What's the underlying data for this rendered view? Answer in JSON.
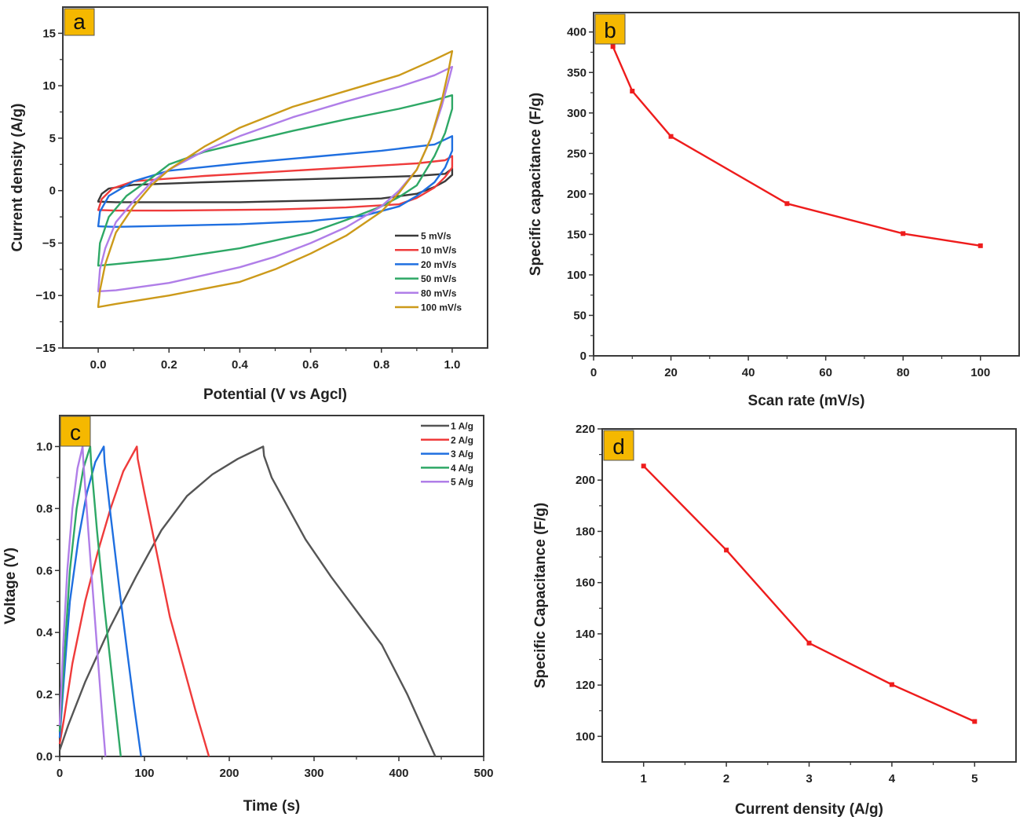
{
  "figure": {
    "panel_label_color": "#F5B800"
  },
  "chart_data": [
    {
      "panel": "a",
      "type": "line",
      "title": "",
      "xlabel": "Potential (V vs Agcl)",
      "ylabel": "Current density (A/g)",
      "xlim": [
        -0.1,
        1.1
      ],
      "ylim": [
        -15,
        17.5
      ],
      "xticks": [
        0.0,
        0.2,
        0.4,
        0.6,
        0.8,
        1.0
      ],
      "xtick_labels": [
        "0.0",
        "0.2",
        "0.4",
        "0.6",
        "0.8",
        "1.0"
      ],
      "yticks": [
        -15,
        -10,
        -5,
        0,
        5,
        10,
        15
      ],
      "ytick_labels": [
        "−15",
        "−10",
        "−5",
        "0",
        "5",
        "10",
        "15"
      ],
      "grid": false,
      "legend_position": "bottom-right",
      "series": [
        {
          "name": "5 mV/s",
          "color": "#3a3a3a",
          "points": [
            [
              0,
              -1.0
            ],
            [
              0.01,
              -0.3
            ],
            [
              0.03,
              0.2
            ],
            [
              0.1,
              0.55
            ],
            [
              0.3,
              0.8
            ],
            [
              0.5,
              1.0
            ],
            [
              0.7,
              1.2
            ],
            [
              0.9,
              1.4
            ],
            [
              0.98,
              1.6
            ],
            [
              1.0,
              2.1
            ],
            [
              1.0,
              1.5
            ],
            [
              0.98,
              0.9
            ],
            [
              0.95,
              0.35
            ],
            [
              0.9,
              -0.3
            ],
            [
              0.8,
              -0.75
            ],
            [
              0.6,
              -0.95
            ],
            [
              0.4,
              -1.1
            ],
            [
              0.2,
              -1.1
            ],
            [
              0.05,
              -1.1
            ],
            [
              0,
              -1.05
            ]
          ]
        },
        {
          "name": "10 mV/s",
          "color": "#ef3b3b",
          "points": [
            [
              0,
              -1.85
            ],
            [
              0.01,
              -0.8
            ],
            [
              0.04,
              0.2
            ],
            [
              0.1,
              0.9
            ],
            [
              0.3,
              1.4
            ],
            [
              0.5,
              1.8
            ],
            [
              0.7,
              2.2
            ],
            [
              0.9,
              2.6
            ],
            [
              0.98,
              2.9
            ],
            [
              1.0,
              3.3
            ],
            [
              1.0,
              2.2
            ],
            [
              0.98,
              1.3
            ],
            [
              0.95,
              0.3
            ],
            [
              0.9,
              -0.7
            ],
            [
              0.85,
              -1.3
            ],
            [
              0.7,
              -1.6
            ],
            [
              0.5,
              -1.8
            ],
            [
              0.2,
              -1.9
            ],
            [
              0.05,
              -1.9
            ],
            [
              0,
              -1.85
            ]
          ]
        },
        {
          "name": "20 mV/s",
          "color": "#1f6fe0",
          "points": [
            [
              0,
              -3.4
            ],
            [
              0.005,
              -2.0
            ],
            [
              0.03,
              -0.5
            ],
            [
              0.1,
              0.9
            ],
            [
              0.2,
              1.9
            ],
            [
              0.4,
              2.6
            ],
            [
              0.6,
              3.2
            ],
            [
              0.8,
              3.8
            ],
            [
              0.95,
              4.4
            ],
            [
              1.0,
              5.2
            ],
            [
              1.0,
              3.8
            ],
            [
              0.98,
              2.2
            ],
            [
              0.95,
              0.8
            ],
            [
              0.9,
              -0.5
            ],
            [
              0.85,
              -1.5
            ],
            [
              0.75,
              -2.4
            ],
            [
              0.6,
              -2.9
            ],
            [
              0.4,
              -3.2
            ],
            [
              0.2,
              -3.35
            ],
            [
              0.05,
              -3.45
            ],
            [
              0,
              -3.4
            ]
          ]
        },
        {
          "name": "50 mV/s",
          "color": "#2ea866",
          "points": [
            [
              0,
              -7.1
            ],
            [
              0.005,
              -5.0
            ],
            [
              0.03,
              -2.5
            ],
            [
              0.08,
              -0.5
            ],
            [
              0.15,
              1.2
            ],
            [
              0.2,
              2.5
            ],
            [
              0.3,
              3.7
            ],
            [
              0.4,
              4.5
            ],
            [
              0.55,
              5.7
            ],
            [
              0.7,
              6.8
            ],
            [
              0.85,
              7.8
            ],
            [
              0.95,
              8.6
            ],
            [
              1.0,
              9.1
            ],
            [
              1.0,
              7.8
            ],
            [
              0.98,
              5.5
            ],
            [
              0.95,
              3.3
            ],
            [
              0.9,
              0.5
            ],
            [
              0.85,
              -0.6
            ],
            [
              0.8,
              -1.5
            ],
            [
              0.7,
              -2.8
            ],
            [
              0.6,
              -4.0
            ],
            [
              0.4,
              -5.5
            ],
            [
              0.2,
              -6.5
            ],
            [
              0.05,
              -7.0
            ],
            [
              0,
              -7.15
            ]
          ]
        },
        {
          "name": "80 mV/s",
          "color": "#b07ee8",
          "points": [
            [
              0,
              -9.6
            ],
            [
              0.005,
              -7.5
            ],
            [
              0.02,
              -5.5
            ],
            [
              0.05,
              -3.0
            ],
            [
              0.1,
              -1.0
            ],
            [
              0.15,
              0.8
            ],
            [
              0.2,
              2.0
            ],
            [
              0.3,
              3.8
            ],
            [
              0.4,
              5.2
            ],
            [
              0.55,
              7.0
            ],
            [
              0.7,
              8.5
            ],
            [
              0.85,
              9.9
            ],
            [
              0.95,
              11.0
            ],
            [
              1.0,
              11.8
            ],
            [
              0.99,
              10.5
            ],
            [
              0.97,
              8.0
            ],
            [
              0.94,
              5.0
            ],
            [
              0.9,
              2.0
            ],
            [
              0.85,
              0.0
            ],
            [
              0.8,
              -1.5
            ],
            [
              0.7,
              -3.5
            ],
            [
              0.6,
              -5.0
            ],
            [
              0.5,
              -6.3
            ],
            [
              0.4,
              -7.3
            ],
            [
              0.2,
              -8.8
            ],
            [
              0.05,
              -9.5
            ],
            [
              0,
              -9.6
            ]
          ]
        },
        {
          "name": "100 mV/s",
          "color": "#cc9a1a",
          "points": [
            [
              0,
              -11.0
            ],
            [
              0.005,
              -9.5
            ],
            [
              0.02,
              -7.0
            ],
            [
              0.05,
              -4.0
            ],
            [
              0.1,
              -1.5
            ],
            [
              0.15,
              0.5
            ],
            [
              0.2,
              2.0
            ],
            [
              0.3,
              4.2
            ],
            [
              0.4,
              6.0
            ],
            [
              0.55,
              8.0
            ],
            [
              0.7,
              9.5
            ],
            [
              0.85,
              11.0
            ],
            [
              0.95,
              12.5
            ],
            [
              1.0,
              13.3
            ],
            [
              0.99,
              11.5
            ],
            [
              0.97,
              8.5
            ],
            [
              0.94,
              5.0
            ],
            [
              0.9,
              2.0
            ],
            [
              0.85,
              -0.2
            ],
            [
              0.8,
              -2.0
            ],
            [
              0.7,
              -4.3
            ],
            [
              0.6,
              -6.0
            ],
            [
              0.5,
              -7.5
            ],
            [
              0.4,
              -8.7
            ],
            [
              0.2,
              -10.0
            ],
            [
              0.05,
              -10.8
            ],
            [
              0,
              -11.1
            ]
          ]
        }
      ]
    },
    {
      "panel": "b",
      "type": "line",
      "title": "",
      "xlabel": "Scan rate (mV/s)",
      "ylabel": "Specific capacitance (F/g)",
      "xlim": [
        0,
        110
      ],
      "ylim": [
        0,
        424
      ],
      "xticks": [
        0,
        20,
        40,
        60,
        80,
        100
      ],
      "xtick_labels": [
        "0",
        "20",
        "40",
        "60",
        "80",
        "100"
      ],
      "yticks": [
        0,
        50,
        100,
        150,
        200,
        250,
        300,
        350,
        400
      ],
      "ytick_labels": [
        "0",
        "50",
        "100",
        "150",
        "200",
        "250",
        "300",
        "350",
        "400"
      ],
      "grid": false,
      "series": [
        {
          "name": "Specific capacitance",
          "color": "#ee1c1c",
          "x": [
            5,
            10,
            20,
            50,
            80,
            100
          ],
          "y": [
            382,
            327,
            271,
            188,
            151,
            136
          ]
        }
      ]
    },
    {
      "panel": "c",
      "type": "line",
      "title": "",
      "xlabel": "Time (s)",
      "ylabel": "Voltage (V)",
      "xlim": [
        0,
        500
      ],
      "ylim": [
        0,
        1.1
      ],
      "xticks": [
        0,
        100,
        200,
        300,
        400,
        500
      ],
      "xtick_labels": [
        "0",
        "100",
        "200",
        "300",
        "400",
        "500"
      ],
      "yticks": [
        0.0,
        0.2,
        0.4,
        0.6,
        0.8,
        1.0
      ],
      "ytick_labels": [
        "0.0",
        "0.2",
        "0.4",
        "0.6",
        "0.8",
        "1.0"
      ],
      "grid": false,
      "legend_position": "top-right",
      "series": [
        {
          "name": "1 A/g",
          "color": "#555555",
          "points": [
            [
              0,
              0.02
            ],
            [
              10,
              0.1
            ],
            [
              30,
              0.24
            ],
            [
              60,
              0.42
            ],
            [
              90,
              0.58
            ],
            [
              120,
              0.73
            ],
            [
              150,
              0.84
            ],
            [
              180,
              0.91
            ],
            [
              210,
              0.96
            ],
            [
              240,
              1.0
            ],
            [
              241,
              0.97
            ],
            [
              250,
              0.9
            ],
            [
              270,
              0.8
            ],
            [
              290,
              0.7
            ],
            [
              320,
              0.58
            ],
            [
              350,
              0.47
            ],
            [
              380,
              0.36
            ],
            [
              410,
              0.2
            ],
            [
              443,
              0.0
            ]
          ]
        },
        {
          "name": "2 A/g",
          "color": "#ef3b3b",
          "points": [
            [
              0,
              0.04
            ],
            [
              5,
              0.12
            ],
            [
              15,
              0.3
            ],
            [
              30,
              0.5
            ],
            [
              45,
              0.66
            ],
            [
              60,
              0.8
            ],
            [
              75,
              0.92
            ],
            [
              91,
              1.0
            ],
            [
              92,
              0.96
            ],
            [
              100,
              0.85
            ],
            [
              115,
              0.65
            ],
            [
              130,
              0.45
            ],
            [
              145,
              0.3
            ],
            [
              160,
              0.15
            ],
            [
              176,
              0.0
            ]
          ]
        },
        {
          "name": "3 A/g",
          "color": "#1f6fe0",
          "points": [
            [
              0,
              0.06
            ],
            [
              5,
              0.25
            ],
            [
              12,
              0.5
            ],
            [
              22,
              0.7
            ],
            [
              32,
              0.85
            ],
            [
              42,
              0.95
            ],
            [
              52,
              1.0
            ],
            [
              53,
              0.95
            ],
            [
              60,
              0.78
            ],
            [
              70,
              0.55
            ],
            [
              80,
              0.33
            ],
            [
              88,
              0.16
            ],
            [
              96,
              0.0
            ]
          ]
        },
        {
          "name": "4 A/g",
          "color": "#2ea866",
          "points": [
            [
              0,
              0.08
            ],
            [
              5,
              0.3
            ],
            [
              12,
              0.6
            ],
            [
              20,
              0.8
            ],
            [
              28,
              0.93
            ],
            [
              36,
              1.0
            ],
            [
              37,
              0.95
            ],
            [
              44,
              0.73
            ],
            [
              52,
              0.5
            ],
            [
              60,
              0.3
            ],
            [
              66,
              0.15
            ],
            [
              72,
              0.0
            ]
          ]
        },
        {
          "name": "5 A/g",
          "color": "#b07ee8",
          "points": [
            [
              0,
              0.1
            ],
            [
              4,
              0.35
            ],
            [
              9,
              0.6
            ],
            [
              15,
              0.8
            ],
            [
              21,
              0.93
            ],
            [
              27,
              1.0
            ],
            [
              28,
              0.95
            ],
            [
              34,
              0.72
            ],
            [
              40,
              0.5
            ],
            [
              46,
              0.28
            ],
            [
              51,
              0.1
            ],
            [
              54,
              0.0
            ]
          ]
        }
      ]
    },
    {
      "panel": "d",
      "type": "line",
      "title": "",
      "xlabel": "Current density (A/g)",
      "ylabel": "Specific Capacitance (F/g)",
      "xlim": [
        0.5,
        5.5
      ],
      "ylim": [
        90,
        220
      ],
      "xticks": [
        1,
        2,
        3,
        4,
        5
      ],
      "xtick_labels": [
        "1",
        "2",
        "3",
        "4",
        "5"
      ],
      "yticks": [
        100,
        120,
        140,
        160,
        180,
        200,
        220
      ],
      "ytick_labels": [
        "100",
        "120",
        "140",
        "160",
        "180",
        "200",
        "220"
      ],
      "grid": false,
      "series": [
        {
          "name": "Specific Capacitance",
          "color": "#ee1c1c",
          "x": [
            1,
            2,
            3,
            4,
            5
          ],
          "y": [
            205.5,
            172.7,
            136.4,
            120.2,
            105.8
          ]
        }
      ]
    }
  ]
}
